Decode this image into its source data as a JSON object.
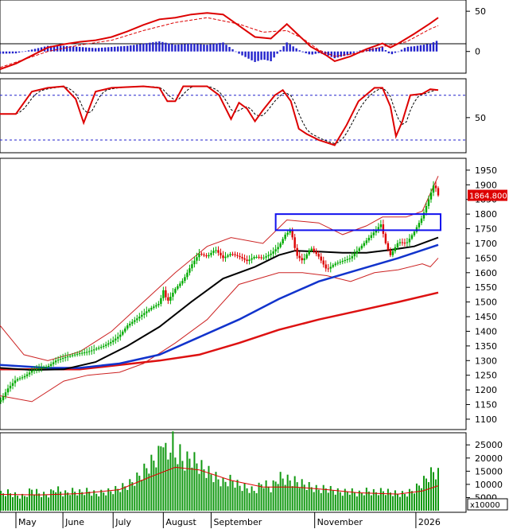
{
  "chart_data": [
    {
      "type": "line",
      "panel": "macd",
      "yticks": [
        50,
        0
      ],
      "ylim": [
        -25,
        62
      ],
      "series": [],
      "macd_points": [
        [
          0,
          -22
        ],
        [
          20,
          -15
        ],
        [
          40,
          -5
        ],
        [
          60,
          5
        ],
        [
          80,
          9
        ],
        [
          100,
          12
        ],
        [
          120,
          14
        ],
        [
          140,
          18
        ],
        [
          160,
          25
        ],
        [
          180,
          33
        ],
        [
          200,
          40
        ],
        [
          220,
          42
        ],
        [
          240,
          46
        ],
        [
          260,
          48
        ],
        [
          280,
          46
        ],
        [
          300,
          32
        ],
        [
          320,
          18
        ],
        [
          340,
          16
        ],
        [
          360,
          34
        ],
        [
          375,
          20
        ],
        [
          390,
          6
        ],
        [
          410,
          -5
        ],
        [
          420,
          -12
        ],
        [
          440,
          -6
        ],
        [
          460,
          3
        ],
        [
          480,
          10
        ],
        [
          490,
          5
        ],
        [
          500,
          10
        ],
        [
          520,
          22
        ],
        [
          540,
          35
        ],
        [
          550,
          42
        ]
      ],
      "signal_points": [
        [
          0,
          -20
        ],
        [
          30,
          -10
        ],
        [
          60,
          0
        ],
        [
          100,
          8
        ],
        [
          140,
          14
        ],
        [
          180,
          26
        ],
        [
          220,
          36
        ],
        [
          260,
          42
        ],
        [
          300,
          34
        ],
        [
          330,
          24
        ],
        [
          360,
          26
        ],
        [
          380,
          16
        ],
        [
          400,
          2
        ],
        [
          420,
          -6
        ],
        [
          450,
          -2
        ],
        [
          480,
          6
        ],
        [
          510,
          12
        ],
        [
          540,
          28
        ],
        [
          550,
          32
        ]
      ]
    },
    {
      "type": "line",
      "panel": "oscillator",
      "yticks": [
        50
      ],
      "ylim": [
        5,
        100
      ],
      "levels": [
        80,
        20
      ],
      "k_points": [
        [
          0,
          55
        ],
        [
          20,
          55
        ],
        [
          40,
          85
        ],
        [
          60,
          90
        ],
        [
          80,
          92
        ],
        [
          95,
          75
        ],
        [
          105,
          43
        ],
        [
          120,
          85
        ],
        [
          140,
          90
        ],
        [
          180,
          92
        ],
        [
          200,
          90
        ],
        [
          210,
          72
        ],
        [
          220,
          72
        ],
        [
          230,
          92
        ],
        [
          260,
          92
        ],
        [
          275,
          80
        ],
        [
          290,
          48
        ],
        [
          300,
          70
        ],
        [
          310,
          62
        ],
        [
          320,
          45
        ],
        [
          330,
          60
        ],
        [
          345,
          80
        ],
        [
          355,
          87
        ],
        [
          365,
          72
        ],
        [
          375,
          35
        ],
        [
          385,
          28
        ],
        [
          400,
          20
        ],
        [
          420,
          13
        ],
        [
          435,
          40
        ],
        [
          450,
          72
        ],
        [
          470,
          90
        ],
        [
          480,
          90
        ],
        [
          490,
          65
        ],
        [
          497,
          25
        ],
        [
          505,
          45
        ],
        [
          515,
          80
        ],
        [
          530,
          82
        ],
        [
          540,
          88
        ],
        [
          550,
          87
        ]
      ]
    },
    {
      "type": "line",
      "panel": "price",
      "yticks": [
        1950,
        1900,
        1850,
        1800,
        1750,
        1700,
        1650,
        1600,
        1550,
        1500,
        1450,
        1400,
        1350,
        1300,
        1250,
        1200,
        1150,
        1100
      ],
      "ylim": [
        1070,
        1985
      ],
      "last_price_label": "1864.800",
      "box": {
        "x0": 346,
        "x1": 553,
        "low": 1745,
        "high": 1800
      },
      "price_points": [
        [
          0,
          1160
        ],
        [
          10,
          1205
        ],
        [
          20,
          1235
        ],
        [
          30,
          1245
        ],
        [
          40,
          1265
        ],
        [
          50,
          1275
        ],
        [
          60,
          1280
        ],
        [
          70,
          1300
        ],
        [
          80,
          1310
        ],
        [
          90,
          1318
        ],
        [
          100,
          1325
        ],
        [
          110,
          1330
        ],
        [
          120,
          1340
        ],
        [
          130,
          1350
        ],
        [
          140,
          1365
        ],
        [
          150,
          1385
        ],
        [
          160,
          1420
        ],
        [
          170,
          1440
        ],
        [
          180,
          1460
        ],
        [
          190,
          1480
        ],
        [
          200,
          1495
        ],
        [
          205,
          1540
        ],
        [
          210,
          1500
        ],
        [
          220,
          1545
        ],
        [
          230,
          1575
        ],
        [
          240,
          1625
        ],
        [
          250,
          1665
        ],
        [
          260,
          1655
        ],
        [
          270,
          1680
        ],
        [
          280,
          1650
        ],
        [
          290,
          1665
        ],
        [
          300,
          1655
        ],
        [
          310,
          1640
        ],
        [
          320,
          1655
        ],
        [
          330,
          1650
        ],
        [
          340,
          1665
        ],
        [
          350,
          1690
        ],
        [
          358,
          1730
        ],
        [
          365,
          1745
        ],
        [
          372,
          1660
        ],
        [
          380,
          1640
        ],
        [
          390,
          1685
        ],
        [
          400,
          1655
        ],
        [
          410,
          1610
        ],
        [
          420,
          1630
        ],
        [
          430,
          1640
        ],
        [
          440,
          1650
        ],
        [
          450,
          1680
        ],
        [
          460,
          1710
        ],
        [
          470,
          1740
        ],
        [
          478,
          1765
        ],
        [
          485,
          1690
        ],
        [
          490,
          1660
        ],
        [
          500,
          1705
        ],
        [
          510,
          1700
        ],
        [
          520,
          1740
        ],
        [
          530,
          1790
        ],
        [
          538,
          1850
        ],
        [
          545,
          1905
        ],
        [
          550,
          1864
        ]
      ],
      "ma20_points": [
        [
          0,
          1275
        ],
        [
          40,
          1268
        ],
        [
          80,
          1270
        ],
        [
          120,
          1295
        ],
        [
          160,
          1350
        ],
        [
          200,
          1415
        ],
        [
          240,
          1500
        ],
        [
          280,
          1580
        ],
        [
          320,
          1620
        ],
        [
          350,
          1660
        ],
        [
          370,
          1675
        ],
        [
          400,
          1672
        ],
        [
          430,
          1668
        ],
        [
          460,
          1668
        ],
        [
          490,
          1678
        ],
        [
          520,
          1690
        ],
        [
          550,
          1720
        ]
      ],
      "ma50_points": [
        [
          0,
          1285
        ],
        [
          60,
          1275
        ],
        [
          100,
          1275
        ],
        [
          150,
          1290
        ],
        [
          200,
          1320
        ],
        [
          250,
          1380
        ],
        [
          300,
          1440
        ],
        [
          350,
          1510
        ],
        [
          400,
          1570
        ],
        [
          450,
          1610
        ],
        [
          500,
          1650
        ],
        [
          550,
          1695
        ]
      ],
      "ma200_points": [
        [
          0,
          1270
        ],
        [
          100,
          1270
        ],
        [
          150,
          1285
        ],
        [
          200,
          1300
        ],
        [
          250,
          1320
        ],
        [
          300,
          1360
        ],
        [
          350,
          1405
        ],
        [
          400,
          1440
        ],
        [
          450,
          1470
        ],
        [
          500,
          1500
        ],
        [
          550,
          1532
        ]
      ],
      "bb_upper_points": [
        [
          0,
          1420
        ],
        [
          30,
          1320
        ],
        [
          60,
          1300
        ],
        [
          100,
          1330
        ],
        [
          140,
          1400
        ],
        [
          180,
          1500
        ],
        [
          220,
          1600
        ],
        [
          260,
          1690
        ],
        [
          290,
          1720
        ],
        [
          330,
          1700
        ],
        [
          360,
          1780
        ],
        [
          400,
          1770
        ],
        [
          430,
          1730
        ],
        [
          460,
          1760
        ],
        [
          480,
          1790
        ],
        [
          510,
          1790
        ],
        [
          530,
          1810
        ],
        [
          550,
          1930
        ]
      ],
      "bb_lower_points": [
        [
          0,
          1180
        ],
        [
          40,
          1160
        ],
        [
          80,
          1230
        ],
        [
          110,
          1250
        ],
        [
          150,
          1260
        ],
        [
          180,
          1290
        ],
        [
          220,
          1360
        ],
        [
          260,
          1440
        ],
        [
          300,
          1560
        ],
        [
          350,
          1600
        ],
        [
          380,
          1600
        ],
        [
          410,
          1590
        ],
        [
          440,
          1570
        ],
        [
          470,
          1600
        ],
        [
          500,
          1610
        ],
        [
          530,
          1630
        ],
        [
          540,
          1620
        ],
        [
          550,
          1650
        ]
      ]
    },
    {
      "type": "bar",
      "panel": "volume",
      "yticks": [
        25000,
        20000,
        15000,
        10000,
        5000
      ],
      "ylim": [
        0,
        29000
      ],
      "unit_label": "x10000",
      "volume_points": [
        [
          0,
          6000
        ],
        [
          10,
          6500
        ],
        [
          20,
          5500
        ],
        [
          30,
          5000
        ],
        [
          40,
          7500
        ],
        [
          50,
          6000
        ],
        [
          60,
          5500
        ],
        [
          70,
          8000
        ],
        [
          80,
          6000
        ],
        [
          90,
          7000
        ],
        [
          100,
          6500
        ],
        [
          110,
          7000
        ],
        [
          120,
          6000
        ],
        [
          130,
          6500
        ],
        [
          140,
          7000
        ],
        [
          150,
          8000
        ],
        [
          160,
          9000
        ],
        [
          170,
          11000
        ],
        [
          180,
          14000
        ],
        [
          190,
          17000
        ],
        [
          200,
          20000
        ],
        [
          205,
          27500
        ],
        [
          210,
          16000
        ],
        [
          215,
          27500
        ],
        [
          220,
          19000
        ],
        [
          225,
          21000
        ],
        [
          230,
          17000
        ],
        [
          240,
          19000
        ],
        [
          250,
          16000
        ],
        [
          260,
          14000
        ],
        [
          270,
          12000
        ],
        [
          280,
          10000
        ],
        [
          290,
          11000
        ],
        [
          300,
          9000
        ],
        [
          310,
          8000
        ],
        [
          320,
          7000
        ],
        [
          330,
          10000
        ],
        [
          340,
          8000
        ],
        [
          350,
          12000
        ],
        [
          360,
          11000
        ],
        [
          370,
          10500
        ],
        [
          380,
          9500
        ],
        [
          390,
          8500
        ],
        [
          400,
          7500
        ],
        [
          410,
          8000
        ],
        [
          420,
          7000
        ],
        [
          430,
          6500
        ],
        [
          440,
          7000
        ],
        [
          450,
          6000
        ],
        [
          460,
          7000
        ],
        [
          470,
          6500
        ],
        [
          480,
          7000
        ],
        [
          490,
          6500
        ],
        [
          500,
          6000
        ],
        [
          510,
          6000
        ],
        [
          520,
          7500
        ],
        [
          530,
          10000
        ],
        [
          540,
          13000
        ],
        [
          545,
          14000
        ],
        [
          550,
          13000
        ]
      ],
      "vol_ma_points": [
        [
          0,
          6200
        ],
        [
          50,
          6000
        ],
        [
          100,
          6500
        ],
        [
          150,
          8000
        ],
        [
          190,
          13000
        ],
        [
          220,
          16500
        ],
        [
          250,
          15500
        ],
        [
          290,
          11500
        ],
        [
          330,
          9000
        ],
        [
          370,
          9000
        ],
        [
          410,
          8000
        ],
        [
          450,
          6800
        ],
        [
          500,
          6300
        ],
        [
          530,
          7500
        ],
        [
          550,
          9500
        ]
      ]
    }
  ],
  "months": [
    {
      "label": "May",
      "x": 0
    },
    {
      "label": "June",
      "x": 59
    },
    {
      "label": "July",
      "x": 122
    },
    {
      "label": "August",
      "x": 185
    },
    {
      "label": "September",
      "x": 245
    },
    {
      "label": "November",
      "x": 375
    },
    {
      "label": "2026",
      "x": 502
    }
  ],
  "colors": {
    "up": "#00aa00",
    "down": "#dd0000",
    "macd_line": "#dd0000",
    "histogram": "#2222cc",
    "ma20": "#000000",
    "ma50": "#1133cc",
    "ma200": "#dd1111",
    "bollinger": "#cc2222",
    "box": "#1111ee",
    "level_lines": "#2222cc",
    "volume": "#119911",
    "price_tag": "#dd0000"
  }
}
